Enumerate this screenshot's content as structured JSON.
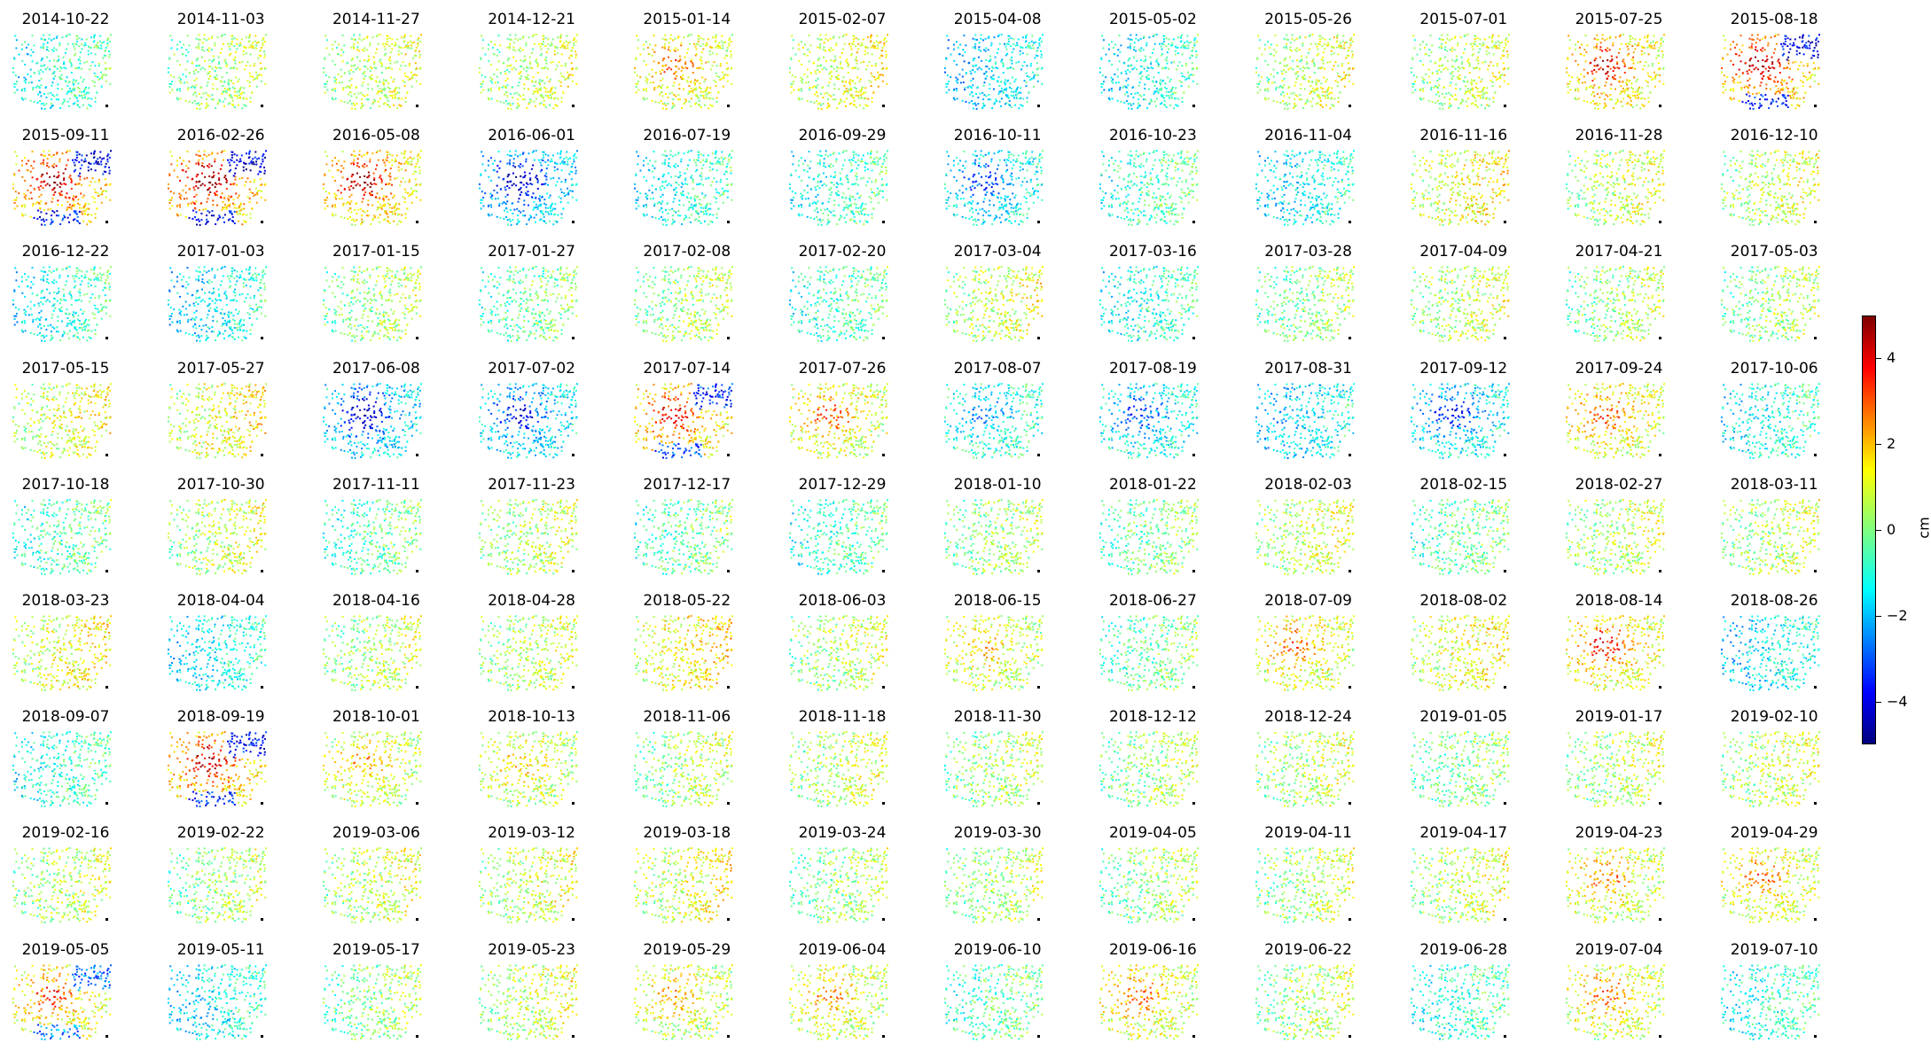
{
  "chart_data": {
    "type": "scatter",
    "layout": "small multiples (12 columns x 9 rows) of spatial point maps",
    "colormap": "jet",
    "colorbar": {
      "label": "cm",
      "range": [
        -5,
        5
      ],
      "ticks": [
        -4,
        -2,
        0,
        2,
        4
      ],
      "tick_labels": [
        "−4",
        "−2",
        "0",
        "2",
        "4"
      ]
    },
    "panels": [
      {
        "date": "2014-10-22",
        "mean": -0.8,
        "pattern": "mild"
      },
      {
        "date": "2014-11-03",
        "mean": 0.3,
        "pattern": "mild"
      },
      {
        "date": "2014-11-27",
        "mean": 0.6,
        "pattern": "mild"
      },
      {
        "date": "2014-12-21",
        "mean": 0.5,
        "pattern": "mild"
      },
      {
        "date": "2015-01-14",
        "mean": 1.8,
        "pattern": "warm-cluster"
      },
      {
        "date": "2015-02-07",
        "mean": 0.8,
        "pattern": "mild"
      },
      {
        "date": "2015-04-08",
        "mean": -1.5,
        "pattern": "mild"
      },
      {
        "date": "2015-05-02",
        "mean": -1.0,
        "pattern": "mild"
      },
      {
        "date": "2015-05-26",
        "mean": 0.6,
        "pattern": "mild"
      },
      {
        "date": "2015-07-01",
        "mean": 0.5,
        "pattern": "mild"
      },
      {
        "date": "2015-07-25",
        "mean": 2.5,
        "pattern": "hot-cluster"
      },
      {
        "date": "2015-08-18",
        "mean": 3.0,
        "pattern": "split-strong"
      },
      {
        "date": "2015-09-11",
        "mean": 3.0,
        "pattern": "split-strong"
      },
      {
        "date": "2016-02-26",
        "mean": 3.2,
        "pattern": "split-strong"
      },
      {
        "date": "2016-05-08",
        "mean": 3.0,
        "pattern": "hot-cluster"
      },
      {
        "date": "2016-06-01",
        "mean": -3.0,
        "pattern": "cold-cluster"
      },
      {
        "date": "2016-07-19",
        "mean": -1.0,
        "pattern": "mild"
      },
      {
        "date": "2016-09-29",
        "mean": -0.8,
        "pattern": "mild"
      },
      {
        "date": "2016-10-11",
        "mean": -2.2,
        "pattern": "cold-cluster"
      },
      {
        "date": "2016-10-23",
        "mean": -0.5,
        "pattern": "mild"
      },
      {
        "date": "2016-11-04",
        "mean": -1.2,
        "pattern": "mild"
      },
      {
        "date": "2016-11-16",
        "mean": 1.0,
        "pattern": "mild"
      },
      {
        "date": "2016-11-28",
        "mean": 0.6,
        "pattern": "mild"
      },
      {
        "date": "2016-12-10",
        "mean": 0.6,
        "pattern": "mild"
      },
      {
        "date": "2016-12-22",
        "mean": -1.0,
        "pattern": "mild"
      },
      {
        "date": "2017-01-03",
        "mean": -1.2,
        "pattern": "mild"
      },
      {
        "date": "2017-01-15",
        "mean": 0.2,
        "pattern": "mild"
      },
      {
        "date": "2017-01-27",
        "mean": -0.3,
        "pattern": "mild"
      },
      {
        "date": "2017-02-08",
        "mean": 0.3,
        "pattern": "mild"
      },
      {
        "date": "2017-02-20",
        "mean": -0.6,
        "pattern": "mild"
      },
      {
        "date": "2017-03-04",
        "mean": 0.6,
        "pattern": "mild"
      },
      {
        "date": "2017-03-16",
        "mean": -0.9,
        "pattern": "mild"
      },
      {
        "date": "2017-03-28",
        "mean": 0.0,
        "pattern": "mild"
      },
      {
        "date": "2017-04-09",
        "mean": 0.5,
        "pattern": "mild"
      },
      {
        "date": "2017-04-21",
        "mean": 0.2,
        "pattern": "mild"
      },
      {
        "date": "2017-05-03",
        "mean": 0.2,
        "pattern": "mild"
      },
      {
        "date": "2017-05-15",
        "mean": 0.8,
        "pattern": "mild"
      },
      {
        "date": "2017-05-27",
        "mean": 1.0,
        "pattern": "mild"
      },
      {
        "date": "2017-06-08",
        "mean": -2.8,
        "pattern": "cold-cluster"
      },
      {
        "date": "2017-07-02",
        "mean": -2.5,
        "pattern": "cold-cluster"
      },
      {
        "date": "2017-07-14",
        "mean": 2.5,
        "pattern": "split-strong"
      },
      {
        "date": "2017-07-26",
        "mean": 1.8,
        "pattern": "warm-cluster"
      },
      {
        "date": "2017-08-07",
        "mean": -1.5,
        "pattern": "cold-cluster"
      },
      {
        "date": "2017-08-19",
        "mean": -2.0,
        "pattern": "cold-cluster"
      },
      {
        "date": "2017-08-31",
        "mean": -1.5,
        "pattern": "mild"
      },
      {
        "date": "2017-09-12",
        "mean": -2.3,
        "pattern": "cold-cluster"
      },
      {
        "date": "2017-09-24",
        "mean": 2.0,
        "pattern": "hot-cluster"
      },
      {
        "date": "2017-10-06",
        "mean": -1.0,
        "pattern": "mild"
      },
      {
        "date": "2017-10-18",
        "mean": -0.5,
        "pattern": "mild"
      },
      {
        "date": "2017-10-30",
        "mean": 0.6,
        "pattern": "mild"
      },
      {
        "date": "2017-11-11",
        "mean": -0.4,
        "pattern": "mild"
      },
      {
        "date": "2017-11-23",
        "mean": 0.4,
        "pattern": "mild"
      },
      {
        "date": "2017-12-17",
        "mean": -0.3,
        "pattern": "mild"
      },
      {
        "date": "2017-12-29",
        "mean": -0.6,
        "pattern": "mild"
      },
      {
        "date": "2018-01-10",
        "mean": 0.2,
        "pattern": "mild"
      },
      {
        "date": "2018-01-22",
        "mean": -0.2,
        "pattern": "mild"
      },
      {
        "date": "2018-02-03",
        "mean": 0.6,
        "pattern": "mild"
      },
      {
        "date": "2018-02-15",
        "mean": -0.3,
        "pattern": "mild"
      },
      {
        "date": "2018-02-27",
        "mean": 0.5,
        "pattern": "mild"
      },
      {
        "date": "2018-03-11",
        "mean": 0.4,
        "pattern": "mild"
      },
      {
        "date": "2018-03-23",
        "mean": 1.0,
        "pattern": "mild"
      },
      {
        "date": "2018-04-04",
        "mean": -1.2,
        "pattern": "mild"
      },
      {
        "date": "2018-04-16",
        "mean": 0.4,
        "pattern": "mild"
      },
      {
        "date": "2018-04-28",
        "mean": 0.4,
        "pattern": "mild"
      },
      {
        "date": "2018-05-22",
        "mean": 1.2,
        "pattern": "mild"
      },
      {
        "date": "2018-06-03",
        "mean": 0.4,
        "pattern": "mild"
      },
      {
        "date": "2018-06-15",
        "mean": 1.3,
        "pattern": "warm-cluster"
      },
      {
        "date": "2018-06-27",
        "mean": -0.3,
        "pattern": "mild"
      },
      {
        "date": "2018-07-09",
        "mean": 1.8,
        "pattern": "warm-cluster"
      },
      {
        "date": "2018-08-02",
        "mean": 1.0,
        "pattern": "mild"
      },
      {
        "date": "2018-08-14",
        "mean": 2.3,
        "pattern": "hot-cluster"
      },
      {
        "date": "2018-08-26",
        "mean": -1.3,
        "pattern": "mild"
      },
      {
        "date": "2018-09-07",
        "mean": -0.8,
        "pattern": "mild"
      },
      {
        "date": "2018-09-19",
        "mean": 2.8,
        "pattern": "split-strong"
      },
      {
        "date": "2018-10-01",
        "mean": 1.3,
        "pattern": "warm-cluster"
      },
      {
        "date": "2018-10-13",
        "mean": 1.2,
        "pattern": "warm-cluster"
      },
      {
        "date": "2018-11-06",
        "mean": 0.3,
        "pattern": "mild"
      },
      {
        "date": "2018-11-18",
        "mean": 0.5,
        "pattern": "mild"
      },
      {
        "date": "2018-11-30",
        "mean": 0.3,
        "pattern": "mild"
      },
      {
        "date": "2018-12-12",
        "mean": 0.2,
        "pattern": "mild"
      },
      {
        "date": "2018-12-24",
        "mean": 0.4,
        "pattern": "mild"
      },
      {
        "date": "2019-01-05",
        "mean": -0.1,
        "pattern": "mild"
      },
      {
        "date": "2019-01-17",
        "mean": 0.4,
        "pattern": "mild"
      },
      {
        "date": "2019-02-10",
        "mean": 0.5,
        "pattern": "mild"
      },
      {
        "date": "2019-02-16",
        "mean": 0.4,
        "pattern": "mild"
      },
      {
        "date": "2019-02-22",
        "mean": 0.2,
        "pattern": "mild"
      },
      {
        "date": "2019-03-06",
        "mean": 0.6,
        "pattern": "mild"
      },
      {
        "date": "2019-03-12",
        "mean": 0.7,
        "pattern": "mild"
      },
      {
        "date": "2019-03-18",
        "mean": 0.9,
        "pattern": "mild"
      },
      {
        "date": "2019-03-24",
        "mean": 0.1,
        "pattern": "mild"
      },
      {
        "date": "2019-03-30",
        "mean": 0.3,
        "pattern": "mild"
      },
      {
        "date": "2019-04-05",
        "mean": 0.2,
        "pattern": "mild"
      },
      {
        "date": "2019-04-11",
        "mean": 0.4,
        "pattern": "mild"
      },
      {
        "date": "2019-04-17",
        "mean": 0.6,
        "pattern": "mild"
      },
      {
        "date": "2019-04-23",
        "mean": 1.6,
        "pattern": "warm-cluster"
      },
      {
        "date": "2019-04-29",
        "mean": 1.7,
        "pattern": "warm-cluster"
      },
      {
        "date": "2019-05-05",
        "mean": 2.0,
        "pattern": "split-strong"
      },
      {
        "date": "2019-05-11",
        "mean": -1.2,
        "pattern": "mild"
      },
      {
        "date": "2019-05-17",
        "mean": 0.1,
        "pattern": "mild"
      },
      {
        "date": "2019-05-23",
        "mean": 0.6,
        "pattern": "mild"
      },
      {
        "date": "2019-05-29",
        "mean": 1.3,
        "pattern": "warm-cluster"
      },
      {
        "date": "2019-06-04",
        "mean": 1.4,
        "pattern": "warm-cluster"
      },
      {
        "date": "2019-06-10",
        "mean": -0.4,
        "pattern": "mild"
      },
      {
        "date": "2019-06-16",
        "mean": 1.8,
        "pattern": "warm-cluster"
      },
      {
        "date": "2019-06-22",
        "mean": 0.4,
        "pattern": "mild"
      },
      {
        "date": "2019-06-28",
        "mean": -0.8,
        "pattern": "mild"
      },
      {
        "date": "2019-07-04",
        "mean": 1.7,
        "pattern": "warm-cluster"
      },
      {
        "date": "2019-07-10",
        "mean": -0.8,
        "pattern": "mild"
      }
    ]
  }
}
